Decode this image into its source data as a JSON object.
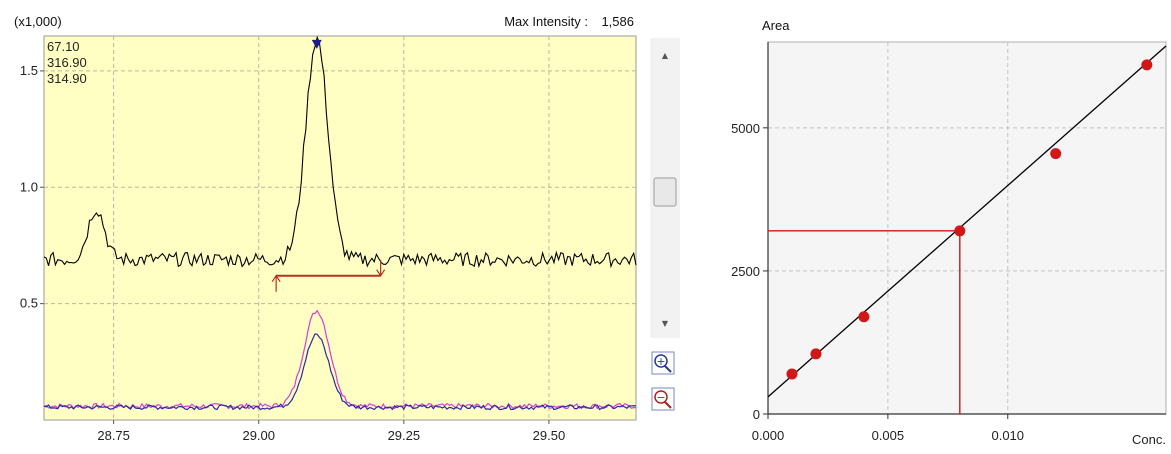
{
  "chart_data": [
    {
      "type": "line",
      "title": "",
      "y_multiplier_label": "(x1,000)",
      "max_intensity_label": "Max Intensity :",
      "max_intensity_value": "1,586",
      "xlim": [
        28.63,
        29.65
      ],
      "ylim": [
        0.0,
        1.65
      ],
      "x_ticks": [
        28.75,
        29.0,
        29.25,
        29.5
      ],
      "x_tick_labels": [
        "28.75",
        "29.00",
        "29.25",
        "29.50"
      ],
      "y_ticks": [
        0.5,
        1.0,
        1.5
      ],
      "y_tick_labels": [
        "0.5",
        "1.0",
        "1.5"
      ],
      "grid": true,
      "background": "#ffffc4",
      "legend_position": "top-left",
      "series": [
        {
          "name": "67.10",
          "color": "#000000"
        },
        {
          "name": "316.90",
          "color": "#d83fd0"
        },
        {
          "name": "314.90",
          "color": "#2a2aa0"
        }
      ],
      "baseline": {
        "x": [
          29.03,
          29.21
        ],
        "y": [
          0.62,
          0.62
        ],
        "color": "#b83020"
      },
      "peak": {
        "x": 29.1,
        "y": 1.586,
        "marker_color": "#1c1c8c"
      }
    },
    {
      "type": "scatter",
      "title": "",
      "ylabel": "Area",
      "xlabel": "Conc.",
      "xlim": [
        0.0,
        0.0166
      ],
      "ylim": [
        0,
        6500
      ],
      "x_ticks": [
        0.0,
        0.005,
        0.01
      ],
      "x_tick_labels": [
        "0.000",
        "0.005",
        "0.010"
      ],
      "y_ticks": [
        0,
        2500,
        5000
      ],
      "y_tick_labels": [
        "0",
        "2500",
        "5000"
      ],
      "grid": true,
      "point_color": "#d01818",
      "points": [
        {
          "x": 0.001,
          "y": 700
        },
        {
          "x": 0.002,
          "y": 1050
        },
        {
          "x": 0.004,
          "y": 1700
        },
        {
          "x": 0.008,
          "y": 3200
        },
        {
          "x": 0.012,
          "y": 4550
        },
        {
          "x": 0.0158,
          "y": 6100
        }
      ],
      "fit_line": {
        "x": [
          0.0,
          0.0166
        ],
        "y": [
          300,
          6430
        ],
        "color": "#000000"
      },
      "crosshair": {
        "x": 0.008,
        "y": 3200,
        "color": "#c81818"
      }
    }
  ],
  "scrollbar": {
    "up_arrow": "▲",
    "down_arrow": "▼"
  },
  "zoom": {
    "in_label": "+",
    "out_label": "−"
  }
}
